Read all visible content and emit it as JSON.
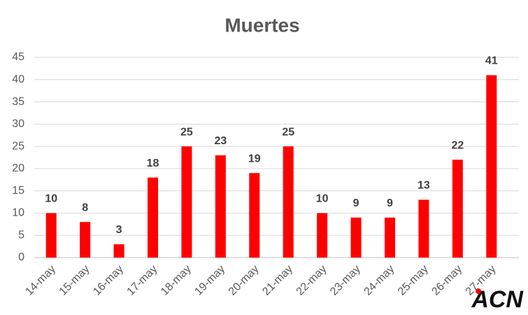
{
  "chart_data": {
    "type": "bar",
    "title": "Muertes",
    "categories": [
      "14-may",
      "15-may",
      "16-may",
      "17-may",
      "18-may",
      "19-may",
      "20-may",
      "21-may",
      "22-may",
      "23-may",
      "24-may",
      "25-may",
      "26-may",
      "27-may"
    ],
    "values": [
      10,
      8,
      3,
      18,
      25,
      23,
      19,
      25,
      10,
      9,
      9,
      13,
      22,
      41
    ],
    "color": "#ff0000",
    "ylim": [
      0,
      45
    ],
    "yticks": [
      0,
      5,
      10,
      15,
      20,
      25,
      30,
      35,
      40,
      45
    ],
    "grid": true,
    "logo": "ACN"
  }
}
